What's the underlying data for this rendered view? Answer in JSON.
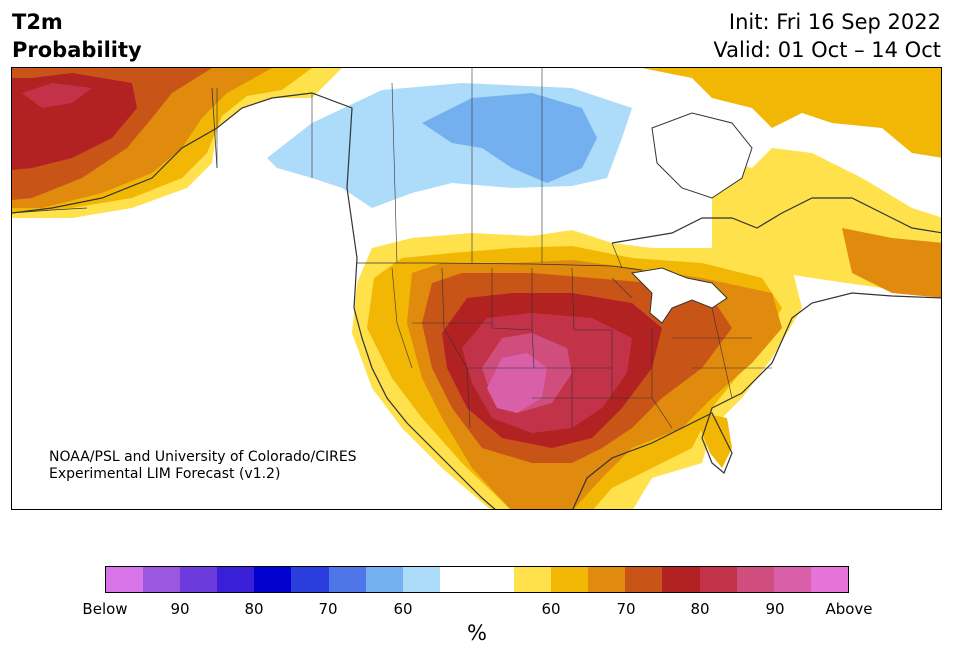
{
  "header": {
    "variable_line1": "T2m",
    "variable_line2": "Probability",
    "init": "Init: Fri 16 Sep 2022",
    "valid": "Valid: 01 Oct – 14 Oct"
  },
  "credit": {
    "line1": "NOAA/PSL and University of Colorado/CIRES",
    "line2": "Experimental LIM Forecast (v1.2)"
  },
  "colorbar": {
    "colors": [
      "#d674e8",
      "#9a57e0",
      "#6d3adb",
      "#3a1fd8",
      "#0000cf",
      "#2a3ddd",
      "#4f76e8",
      "#74aff0",
      "#acdcfa",
      "#ffffff",
      "#ffffff",
      "#fee14b",
      "#f2b705",
      "#e08a0e",
      "#c95418",
      "#b22222",
      "#c2334a",
      "#d04e7d",
      "#d95fa8",
      "#e574d9"
    ],
    "tick_labels": [
      "Below",
      "90",
      "80",
      "70",
      "60",
      "60",
      "70",
      "80",
      "90",
      "Above"
    ],
    "unit": "%"
  },
  "map": {
    "region": "North America",
    "legend_colors": {
      "below_60": "#acdcfa",
      "below_70": "#74aff0",
      "above_60": "#fee14b",
      "above_70": "#f2b705",
      "above_75": "#e08a0e",
      "above_80": "#c95418",
      "above_85": "#b22222",
      "above_90": "#c2334a",
      "above_95": "#d95fa8"
    }
  }
}
